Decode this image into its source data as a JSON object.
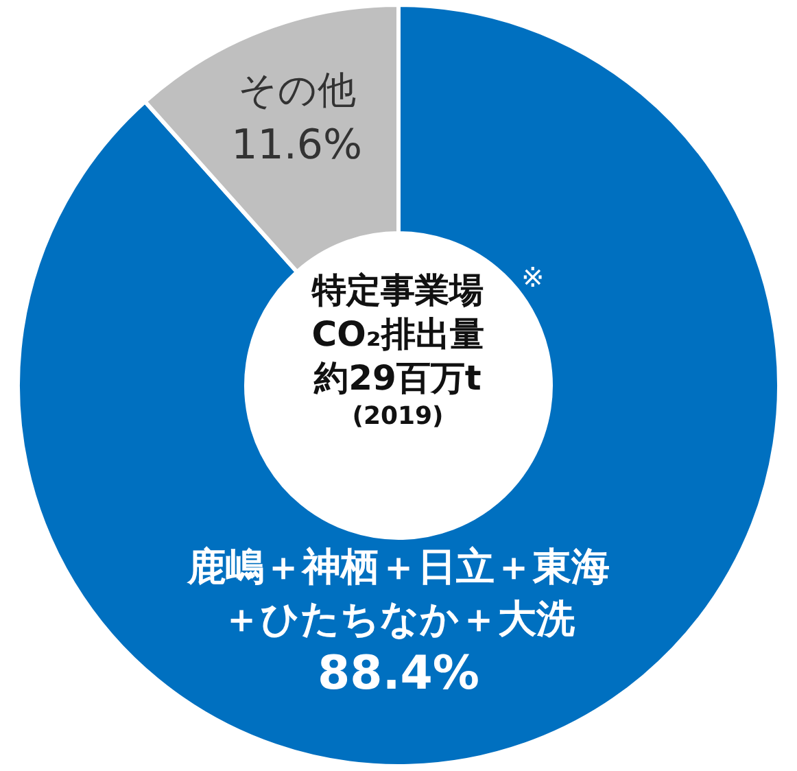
{
  "chart_data": {
    "type": "donut",
    "title": "特定事業場CO₂排出量約29百万t",
    "subtitle": "(2019)",
    "annotations": [
      "※"
    ],
    "categories": [
      "鹿嶋＋神栖＋日立＋東海＋ひたちなか＋大洗",
      "その他"
    ],
    "values": [
      88.4,
      11.6
    ],
    "value_labels": [
      "88.4%",
      "11.6%"
    ],
    "colors": [
      "#0070c0",
      "#bfbfbf"
    ],
    "legend": false
  }
}
